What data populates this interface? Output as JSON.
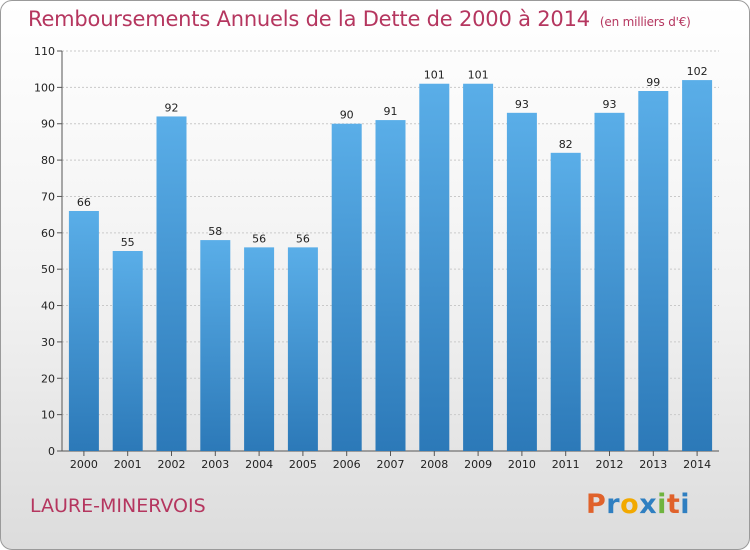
{
  "chart_data": {
    "type": "bar",
    "title": "Remboursements Annuels de la Dette de 2000 à 2014",
    "unit_note": "(en milliers d'€)",
    "categories": [
      "2000",
      "2001",
      "2002",
      "2003",
      "2004",
      "2005",
      "2006",
      "2007",
      "2008",
      "2009",
      "2010",
      "2011",
      "2012",
      "2013",
      "2014"
    ],
    "values": [
      66,
      55,
      92,
      58,
      56,
      56,
      90,
      91,
      101,
      101,
      93,
      82,
      93,
      99,
      102
    ],
    "ylim": [
      0,
      110
    ],
    "yticks": [
      0,
      10,
      20,
      30,
      40,
      50,
      60,
      70,
      80,
      90,
      100,
      110
    ],
    "xlabel": "",
    "ylabel": "",
    "grid": true,
    "bar_color": "#3d94d6"
  },
  "footer": {
    "commune": "LAURE-MINERVOIS",
    "logo_letters": [
      "P",
      "r",
      "o",
      "x",
      "i",
      "t",
      "i"
    ],
    "logo_colors": [
      "#e0622b",
      "#2f7fc1",
      "#f2a900",
      "#2f7fc1",
      "#6fb43f",
      "#e0622b",
      "#2f7fc1"
    ]
  }
}
